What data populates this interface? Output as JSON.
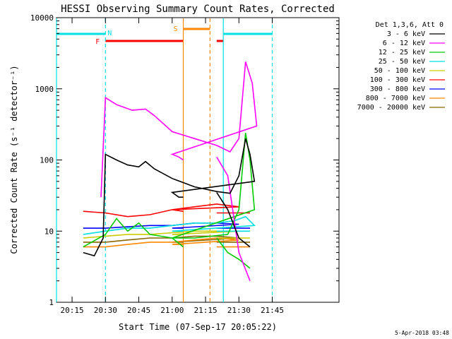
{
  "chart_data": {
    "type": "line",
    "title": "HESSI Observing Summary Count Rates, Corrected",
    "xlabel": "Start Time (07-Sep-17 20:05:22)",
    "ylabel": "Corrected Count Rate (s⁻¹ detector⁻¹)",
    "yscale": "log",
    "ylim": [
      1,
      10000
    ],
    "xlim_minutes": [
      20.08,
      21.75
    ],
    "x_ticks": [
      "20:15",
      "20:30",
      "20:45",
      "21:00",
      "21:15",
      "21:30",
      "21:45"
    ],
    "y_ticks": [
      "1",
      "10",
      "100",
      "1000",
      "10000"
    ],
    "legend_title": "Det 1,3,6, Att 0",
    "legend_position": "right",
    "series": [
      {
        "name": "3 - 6 keV",
        "color": "#000000",
        "points": [
          [
            20.2,
            5
          ],
          [
            20.25,
            4.5
          ],
          [
            20.29,
            8
          ],
          [
            20.3,
            120
          ],
          [
            20.35,
            100
          ],
          [
            20.4,
            85
          ],
          [
            20.45,
            80
          ],
          [
            20.48,
            95
          ],
          [
            20.52,
            75
          ],
          [
            20.6,
            55
          ],
          [
            20.7,
            42
          ],
          [
            20.8,
            36
          ],
          [
            20.86,
            34
          ],
          [
            20.9,
            60
          ],
          [
            20.93,
            200
          ],
          [
            20.95,
            120
          ],
          [
            20.97,
            50
          ],
          [
            21.0,
            35
          ],
          [
            21.03,
            30
          ],
          [
            21.05,
            30
          ],
          [
            21.2,
            35
          ],
          [
            21.25,
            20
          ],
          [
            21.3,
            8
          ],
          [
            21.35,
            6
          ]
        ]
      },
      {
        "name": "6 - 12 keV",
        "color": "#ff00ff",
        "points": [
          [
            20.28,
            30
          ],
          [
            20.3,
            750
          ],
          [
            20.35,
            600
          ],
          [
            20.42,
            500
          ],
          [
            20.48,
            520
          ],
          [
            20.52,
            420
          ],
          [
            20.6,
            250
          ],
          [
            20.7,
            200
          ],
          [
            20.8,
            160
          ],
          [
            20.86,
            130
          ],
          [
            20.9,
            200
          ],
          [
            20.93,
            2400
          ],
          [
            20.96,
            1200
          ],
          [
            20.98,
            300
          ],
          [
            21.0,
            120
          ],
          [
            21.03,
            110
          ],
          [
            21.05,
            100
          ],
          [
            21.2,
            110
          ],
          [
            21.25,
            60
          ],
          [
            21.3,
            5
          ],
          [
            21.35,
            2
          ]
        ]
      },
      {
        "name": "12 - 25 keV",
        "color": "#00cc00",
        "points": [
          [
            20.2,
            6
          ],
          [
            20.3,
            9
          ],
          [
            20.35,
            15
          ],
          [
            20.4,
            10
          ],
          [
            20.45,
            13
          ],
          [
            20.5,
            9
          ],
          [
            20.6,
            8
          ],
          [
            20.7,
            8
          ],
          [
            20.85,
            9
          ],
          [
            20.9,
            20
          ],
          [
            20.93,
            240
          ],
          [
            20.95,
            100
          ],
          [
            20.97,
            20
          ],
          [
            21.0,
            8
          ],
          [
            21.05,
            6
          ],
          [
            21.2,
            8
          ],
          [
            21.25,
            5
          ],
          [
            21.3,
            4
          ],
          [
            21.35,
            3
          ]
        ]
      },
      {
        "name": "25 - 50 keV",
        "color": "#00e0e0",
        "points": [
          [
            20.2,
            9
          ],
          [
            20.3,
            10
          ],
          [
            20.4,
            11
          ],
          [
            20.5,
            11
          ],
          [
            20.6,
            12
          ],
          [
            20.7,
            13
          ],
          [
            20.8,
            13
          ],
          [
            20.88,
            14
          ],
          [
            20.93,
            16
          ],
          [
            20.97,
            12
          ],
          [
            21.0,
            10
          ],
          [
            21.05,
            10
          ],
          [
            21.2,
            10
          ],
          [
            21.35,
            10
          ]
        ]
      },
      {
        "name": "50 - 100 keV",
        "color": "#cccc00",
        "points": [
          [
            20.2,
            8
          ],
          [
            20.3,
            8.5
          ],
          [
            20.4,
            9
          ],
          [
            20.5,
            9
          ],
          [
            20.6,
            9.5
          ],
          [
            20.7,
            10
          ],
          [
            20.8,
            10
          ],
          [
            20.9,
            10
          ],
          [
            21.0,
            9
          ],
          [
            21.05,
            9
          ],
          [
            21.2,
            8
          ],
          [
            21.35,
            8
          ]
        ]
      },
      {
        "name": "100 - 300 keV",
        "color": "#ff0000",
        "points": [
          [
            20.2,
            19
          ],
          [
            20.3,
            18
          ],
          [
            20.4,
            16
          ],
          [
            20.5,
            17
          ],
          [
            20.6,
            20
          ],
          [
            20.7,
            22
          ],
          [
            20.8,
            24
          ],
          [
            20.9,
            22
          ],
          [
            21.0,
            20
          ],
          [
            21.05,
            19
          ],
          [
            21.2,
            18
          ],
          [
            21.35,
            18
          ]
        ]
      },
      {
        "name": "300 - 800 keV",
        "color": "#0000ff",
        "points": [
          [
            20.2,
            11
          ],
          [
            20.3,
            11
          ],
          [
            20.4,
            11.5
          ],
          [
            20.5,
            12
          ],
          [
            20.6,
            12
          ],
          [
            20.7,
            13
          ],
          [
            20.8,
            13
          ],
          [
            20.9,
            12.5
          ],
          [
            21.0,
            11
          ],
          [
            21.05,
            11
          ],
          [
            21.2,
            11
          ],
          [
            21.35,
            11
          ]
        ]
      },
      {
        "name": "800 - 7000 keV",
        "color": "#ff8800",
        "points": [
          [
            20.2,
            6
          ],
          [
            20.3,
            6
          ],
          [
            20.4,
            6.5
          ],
          [
            20.5,
            7
          ],
          [
            20.6,
            7
          ],
          [
            20.7,
            7.5
          ],
          [
            20.8,
            8
          ],
          [
            20.9,
            7.5
          ],
          [
            21.0,
            6.5
          ],
          [
            21.05,
            6.5
          ],
          [
            21.2,
            6
          ],
          [
            21.35,
            6
          ]
        ]
      },
      {
        "name": "7000 - 20000 keV",
        "color": "#886600",
        "points": [
          [
            20.2,
            7
          ],
          [
            20.3,
            7
          ],
          [
            20.4,
            7.5
          ],
          [
            20.5,
            8
          ],
          [
            20.6,
            8
          ],
          [
            20.7,
            8.5
          ],
          [
            20.8,
            8.5
          ],
          [
            20.9,
            8
          ],
          [
            21.0,
            7
          ],
          [
            21.05,
            7
          ],
          [
            21.2,
            7
          ],
          [
            21.35,
            7
          ]
        ]
      }
    ],
    "flags": [
      {
        "label": "N",
        "color": "#00e0e0",
        "segments": [
          [
            20.08,
            20.3
          ],
          [
            21.23,
            21.45
          ]
        ]
      },
      {
        "label": "F",
        "color": "#ff0000",
        "segments": [
          [
            20.3,
            21.05
          ],
          [
            21.2,
            21.23
          ]
        ]
      },
      {
        "label": "S",
        "color": "#ff8800",
        "segments": [
          [
            21.05,
            21.17
          ]
        ]
      }
    ],
    "vlines": [
      {
        "x": 20.08,
        "color": "#00e0e0",
        "dash": false
      },
      {
        "x": 20.3,
        "color": "#00e0e0",
        "dash": true
      },
      {
        "x": 21.05,
        "color": "#ff8800",
        "dash": false
      },
      {
        "x": 21.17,
        "color": "#ff8800",
        "dash": true
      },
      {
        "x": 21.23,
        "color": "#00e0e0",
        "dash": false
      },
      {
        "x": 21.45,
        "color": "#00e0e0",
        "dash": true
      }
    ],
    "footer_date": "5-Apr-2018 03:48"
  }
}
